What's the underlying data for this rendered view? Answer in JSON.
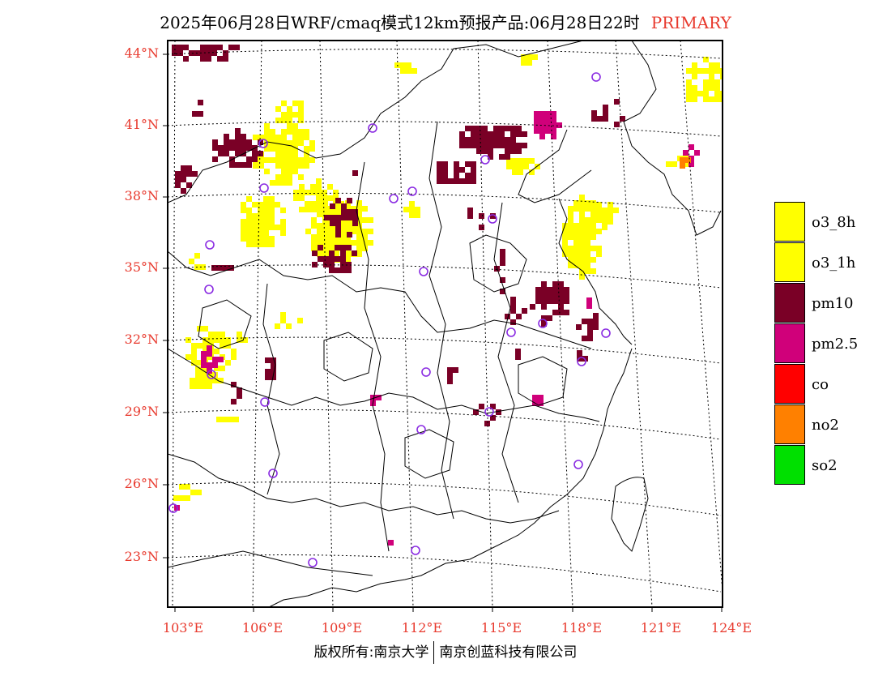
{
  "title": {
    "text": "2025年06月28日WRF/cmaq模式12km预报产品:06月28日22时",
    "badge": "PRIMARY",
    "badge_color": "#e8392d"
  },
  "axes": {
    "lat_labels": [
      "44°N",
      "41°N",
      "38°N",
      "35°N",
      "32°N",
      "29°N",
      "26°N",
      "23°N"
    ],
    "lon_labels": [
      "103°E",
      "106°E",
      "109°E",
      "112°E",
      "115°E",
      "118°E",
      "121°E",
      "124°E"
    ],
    "label_color": "#e8392d"
  },
  "legend": {
    "items": [
      {
        "label": "o3_8h",
        "color": "#ffff00"
      },
      {
        "label": "o3_1h",
        "color": "#ffff00"
      },
      {
        "label": "pm10",
        "color": "#7a0026"
      },
      {
        "label": "pm2.5",
        "color": "#d0007a"
      },
      {
        "label": "co",
        "color": "#ff0000"
      },
      {
        "label": "no2",
        "color": "#ff8000"
      },
      {
        "label": "so2",
        "color": "#00e000"
      }
    ]
  },
  "map": {
    "colors": {
      "o3": "#ffff00",
      "pm10": "#7a0026",
      "pm25": "#d0007a",
      "no2": "#ff8000",
      "station": "#8a2be2"
    }
  },
  "footer": {
    "left": "版权所有:南京大学",
    "right": "南京创蓝科技有限公司"
  }
}
